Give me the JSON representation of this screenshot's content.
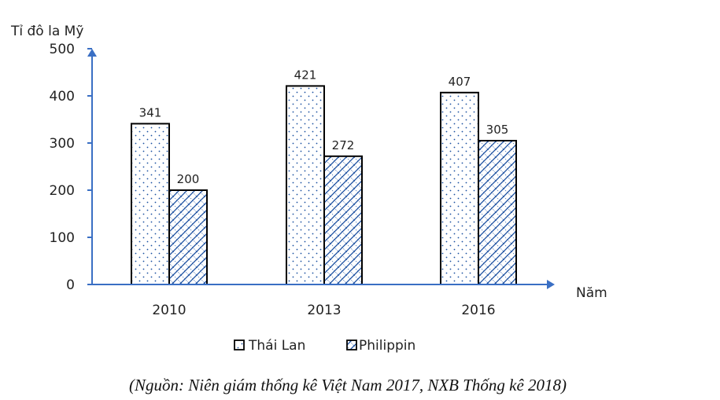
{
  "chart_data": {
    "type": "bar",
    "title": "",
    "ylabel": "Tỉ đô la Mỹ",
    "xlabel": "Năm",
    "categories": [
      "2010",
      "2013",
      "2016"
    ],
    "series": [
      {
        "name": "Thái Lan",
        "values": [
          341,
          421,
          407
        ],
        "pattern": "dots"
      },
      {
        "name": "Philippin",
        "values": [
          200,
          272,
          305
        ],
        "pattern": "crosshatch"
      }
    ],
    "ylim": [
      0,
      500
    ],
    "yticks": [
      "0",
      "100",
      "200",
      "300",
      "400",
      "500"
    ],
    "legend_position": "bottom",
    "grid": false,
    "colors": {
      "axis": "#3a6fc4",
      "bar_border": "#000000",
      "pattern": "#1a4fa0"
    }
  },
  "source_note": "(Nguồn: Niên giám thống kê Việt Nam 2017, NXB Thống kê 2018)"
}
